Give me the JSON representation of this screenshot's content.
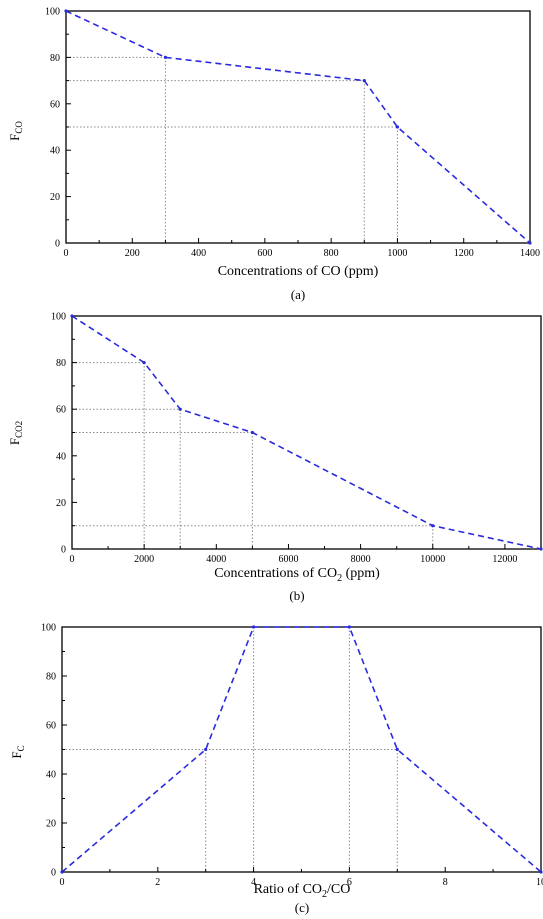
{
  "chart_data": [
    {
      "type": "line",
      "panel": "(a)",
      "xlabel": "Concentrations of CO  (ppm)",
      "ylabel_main": "F",
      "ylabel_sub": "CO",
      "xlim": [
        0,
        1400
      ],
      "ylim": [
        0,
        100
      ],
      "xticks": [
        0,
        200,
        400,
        600,
        800,
        1000,
        1200,
        1400
      ],
      "yticks": [
        0,
        20,
        40,
        60,
        80,
        100
      ],
      "series": [
        {
          "x": [
            0,
            300,
            900,
            1000,
            1400
          ],
          "y": [
            100,
            80,
            70,
            50,
            0
          ]
        }
      ],
      "guides": [
        {
          "x": 300,
          "y": 80
        },
        {
          "x": 900,
          "y": 70
        },
        {
          "x": 1000,
          "y": 50
        }
      ],
      "line_color": "#2a2adf",
      "line_style": "dashed",
      "grid": false
    },
    {
      "type": "line",
      "panel": "(b)",
      "xlabel_pre": "Concentrations of CO",
      "xlabel_sub": "2",
      "xlabel_post": " (ppm)",
      "ylabel_main": "F",
      "ylabel_sub": "CO2",
      "xlim": [
        0,
        13000
      ],
      "ylim": [
        0,
        100
      ],
      "xticks": [
        0,
        2000,
        4000,
        6000,
        8000,
        10000,
        12000
      ],
      "yticks": [
        0,
        20,
        40,
        60,
        80,
        100
      ],
      "series": [
        {
          "x": [
            0,
            2000,
            3000,
            5000,
            10000,
            13000
          ],
          "y": [
            100,
            80,
            60,
            50,
            10,
            0
          ]
        }
      ],
      "guides": [
        {
          "x": 2000,
          "y": 80
        },
        {
          "x": 3000,
          "y": 60
        },
        {
          "x": 5000,
          "y": 50
        },
        {
          "x": 10000,
          "y": 10
        }
      ],
      "line_color": "#2a2adf",
      "line_style": "dashed",
      "grid": false
    },
    {
      "type": "line",
      "panel": "(c)",
      "xlabel_pre": "Ratio of CO",
      "xlabel_sub": "2",
      "xlabel_post": "/CO",
      "ylabel_main": "F",
      "ylabel_sub": "C",
      "xlim": [
        0,
        10
      ],
      "ylim": [
        0,
        100
      ],
      "xticks": [
        0,
        2,
        4,
        6,
        8,
        10
      ],
      "yticks": [
        0,
        20,
        40,
        60,
        80,
        100
      ],
      "series": [
        {
          "x": [
            0,
            3,
            4,
            6,
            7,
            10
          ],
          "y": [
            0,
            50,
            100,
            100,
            50,
            0
          ]
        }
      ],
      "guides": [
        {
          "x": 3,
          "y": 50
        },
        {
          "x": 4,
          "y": 100
        },
        {
          "x": 6,
          "y": 100
        },
        {
          "x": 7,
          "y": 50
        }
      ],
      "line_color": "#2a2adf",
      "line_style": "dashed",
      "grid": false
    }
  ]
}
